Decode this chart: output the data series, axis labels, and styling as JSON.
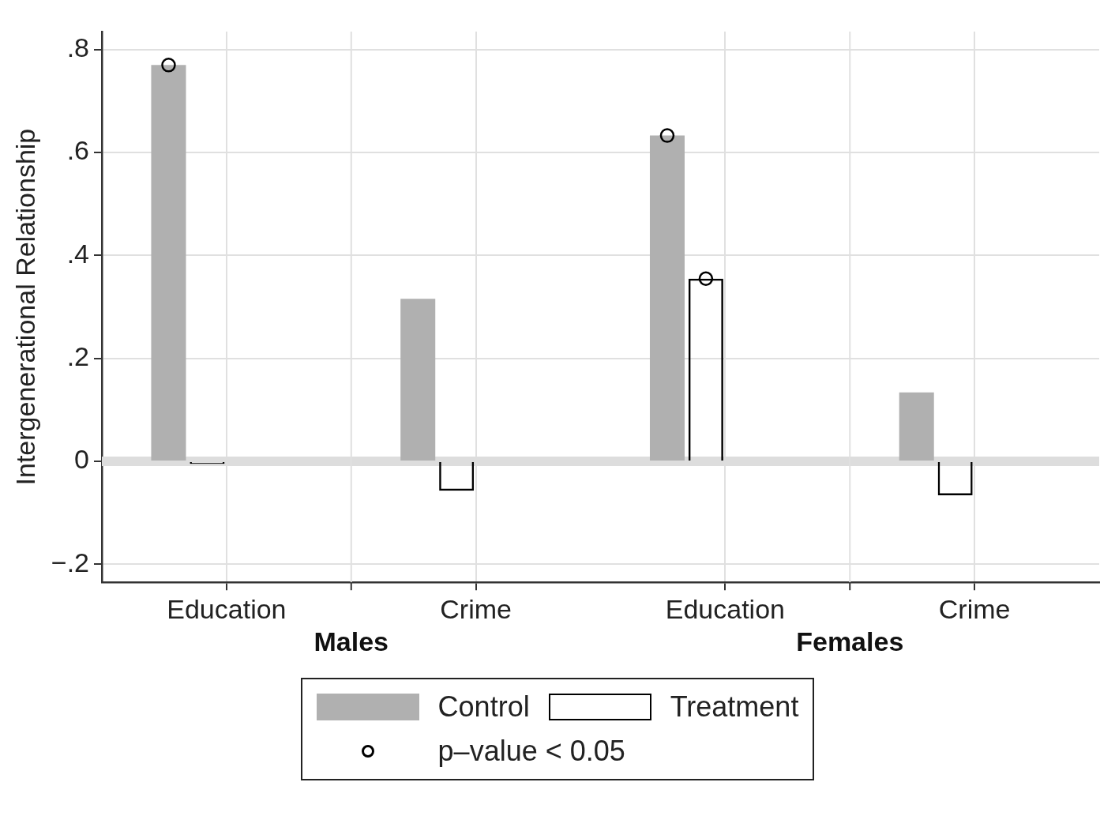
{
  "chart_data": {
    "type": "bar",
    "ylabel": "Intergenerational Relationship",
    "categories": [
      "Education",
      "Crime",
      "Education",
      "Crime"
    ],
    "annotations": [
      "Males",
      "Females"
    ],
    "series": [
      {
        "name": "Control",
        "color": "#b0b0b0",
        "values": [
          0.77,
          0.316,
          0.633,
          0.134
        ]
      },
      {
        "name": "Treatment",
        "color": "#000000",
        "values": [
          -0.005,
          -0.057,
          0.355,
          -0.066
        ]
      },
      {
        "name": "p–value < 0.05",
        "type": "scatter",
        "color": "#000000",
        "values": [
          0.77,
          null,
          0.633,
          null
        ]
      },
      {
        "type": "scatter",
        "color": "#000000",
        "values": [
          null,
          null,
          0.355,
          null
        ]
      }
    ],
    "ylim": [
      -0.235,
      0.835
    ],
    "yticks": [
      {
        "value": -0.2,
        "label": "−.2"
      },
      {
        "value": 0,
        "label": "0"
      },
      {
        "value": 0.2,
        "label": ".2"
      },
      {
        "value": 0.4,
        "label": ".4"
      },
      {
        "value": 0.6,
        "label": ".6"
      },
      {
        "value": 0.8,
        "label": ".8"
      }
    ],
    "ref_lines": [
      {
        "axis": "y",
        "value": 0,
        "color": "#dddddd"
      }
    ],
    "grid": true,
    "legend": "bottom",
    "marker": "circle"
  }
}
